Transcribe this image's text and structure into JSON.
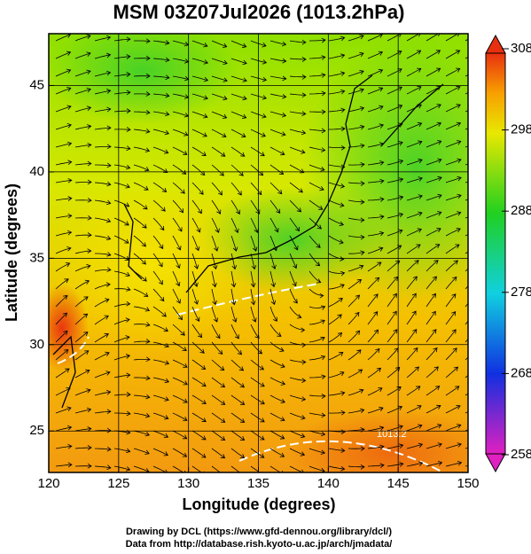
{
  "chart_data": {
    "type": "map",
    "title": "MSM 03Z07Jul2026 (1013.2hPa)",
    "x_label": "Longitude (degrees)",
    "y_label": "Latitude  (degrees)",
    "xlim": [
      120,
      150
    ],
    "xticks": [
      120,
      125,
      130,
      135,
      140,
      145,
      150
    ],
    "ylim": [
      22.6,
      48.0
    ],
    "yticks": [
      25,
      30,
      35,
      40,
      45
    ],
    "grid": true,
    "colorbar": {
      "lim": [
        258,
        308
      ],
      "ticks": [
        258,
        268,
        278,
        288,
        298,
        308
      ]
    },
    "contour_label": "1013.2",
    "footer": [
      "Drawing by DCL (https://www.gfd-dennou.org/library/dcl/)",
      "Data from http://database.rish.kyoto-u.ac.jp/arch/jmadata/"
    ]
  }
}
